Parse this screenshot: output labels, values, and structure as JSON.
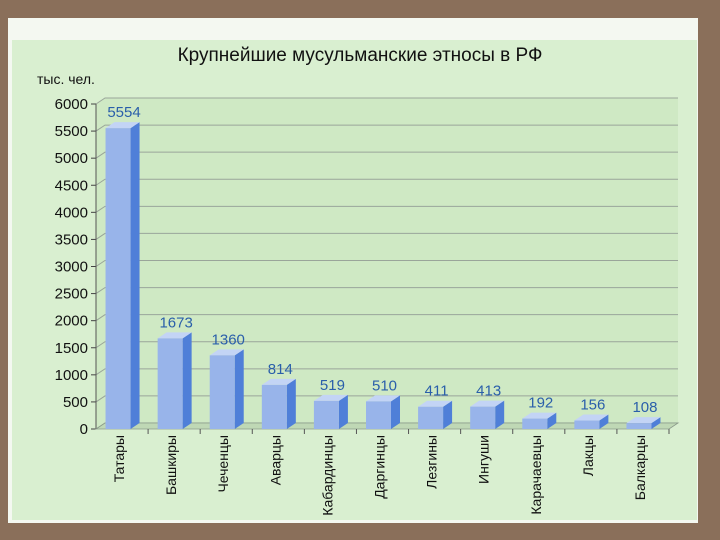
{
  "chart_data": {
    "type": "bar",
    "title": "Крупнейшие мусульманские этносы в РФ",
    "ylabel": "тыс. чел.",
    "xlabel": "",
    "categories": [
      "Татары",
      "Башкиры",
      "Чеченцы",
      "Аварцы",
      "Кабардинцы",
      "Даргинцы",
      "Лезгины",
      "Ингуши",
      "Карачаевцы",
      "Лакцы",
      "Балкарцы"
    ],
    "values": [
      5554,
      1673,
      1360,
      814,
      519,
      510,
      411,
      413,
      192,
      156,
      108
    ],
    "ylim": [
      0,
      6000
    ],
    "yticks": [
      0,
      500,
      1000,
      1500,
      2000,
      2500,
      3000,
      3500,
      4000,
      4500,
      5000,
      5500,
      6000
    ],
    "grid": true,
    "colors": {
      "bar_front": "#98b4ea",
      "bar_side": "#4f7fd8",
      "bar_top": "#c3d4f5",
      "value_label": "#2a5faa",
      "panel": "#d9efd0",
      "wall": "#cfe9c4"
    }
  }
}
